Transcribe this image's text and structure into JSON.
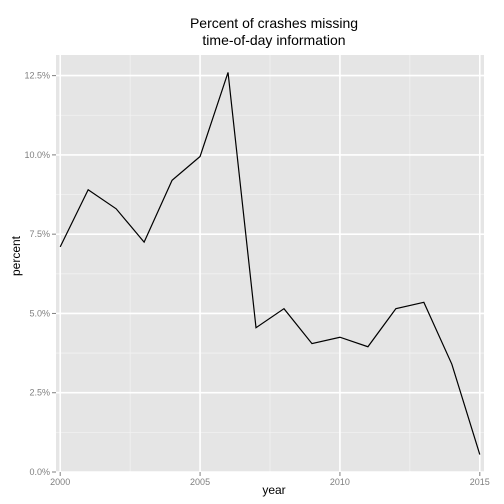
{
  "chart_data": {
    "type": "line",
    "title_lines": [
      "Percent of crashes missing",
      "time-of-day information"
    ],
    "xlabel": "year",
    "ylabel": "percent",
    "xlim": [
      1999.85,
      2015.15
    ],
    "ylim": [
      0,
      13.15
    ],
    "x_ticks": [
      2000,
      2005,
      2010,
      2015
    ],
    "x_tick_labels": [
      "2000",
      "2005",
      "2010",
      "2015"
    ],
    "y_ticks": [
      0,
      2.5,
      5.0,
      7.5,
      10.0,
      12.5
    ],
    "y_tick_labels": [
      "0.0%",
      "2.5%",
      "5.0%",
      "7.5%",
      "10.0%",
      "12.5%"
    ],
    "grid": true,
    "series": [
      {
        "x": [
          2000,
          2001,
          2002,
          2003,
          2004,
          2005,
          2006,
          2007,
          2008,
          2009,
          2010,
          2011,
          2012,
          2013,
          2014,
          2015
        ],
        "values": [
          7.1,
          8.9,
          8.3,
          7.25,
          9.2,
          9.95,
          12.6,
          4.55,
          5.15,
          4.05,
          4.25,
          3.95,
          5.15,
          5.35,
          3.4,
          0.55
        ]
      }
    ],
    "colors": {
      "panel": "#e5e5e5",
      "grid_major": "#ffffff",
      "grid_minor": "#f2f2f2",
      "line": "#000000",
      "tick_text": "#7f7f7f"
    }
  }
}
